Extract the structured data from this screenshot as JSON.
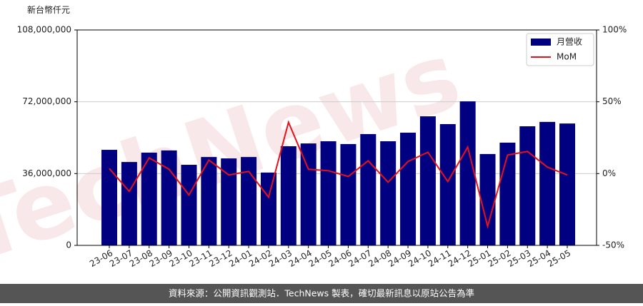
{
  "chart_data": {
    "type": "combo",
    "y_label": "新台幣仟元",
    "categories": [
      "23-06",
      "23-07",
      "23-08",
      "23-09",
      "23-10",
      "23-11",
      "23-12",
      "24-01",
      "24-02",
      "24-03",
      "24-04",
      "24-05",
      "24-06",
      "24-07",
      "24-08",
      "24-09",
      "24-10",
      "24-11",
      "24-12",
      "25-01",
      "25-02",
      "25-03",
      "25-04",
      "25-05"
    ],
    "series": [
      {
        "name": "月營收",
        "type": "bar",
        "axis": "y",
        "color": "#000080",
        "values": [
          47900000,
          41800000,
          46500000,
          47600000,
          40400000,
          44300000,
          43600000,
          44300000,
          36500000,
          49700000,
          51100000,
          52200000,
          50800000,
          55800000,
          52200000,
          56500000,
          64700000,
          60800000,
          72200000,
          45800000,
          51500000,
          59700000,
          61900000,
          61100000
        ]
      },
      {
        "name": "MoM",
        "type": "line",
        "axis": "y2",
        "color": "#e8101a",
        "values": [
          3.5,
          -12.4,
          10.9,
          3,
          -14.9,
          9.4,
          -1,
          1.5,
          -16.4,
          35.7,
          3,
          2,
          -2,
          8.9,
          -6,
          8.4,
          14.9,
          -5.5,
          18.4,
          -36.7,
          12.9,
          15.4,
          4.5,
          -1
        ]
      }
    ],
    "ylim": [
      0,
      108000000
    ],
    "yticks": [
      0,
      {
        "value": 36000000,
        "label": "36,000,000"
      },
      {
        "value": 72000000,
        "label": "72,000,000"
      },
      {
        "value": 108000000,
        "label": "108,000,000"
      }
    ],
    "y2lim": [
      -50,
      100
    ],
    "y2ticks": [
      {
        "value": -50,
        "label": "-50%"
      },
      {
        "value": 0,
        "label": "0%"
      },
      {
        "value": 50,
        "label": "50%"
      },
      {
        "value": 100,
        "label": "100%"
      }
    ],
    "grid": true,
    "legend": "upper right",
    "watermark": "TechNews",
    "footer": "資料來源：公開資訊觀測站．TechNews 製表，確切最新訊息以原站公告為準"
  }
}
